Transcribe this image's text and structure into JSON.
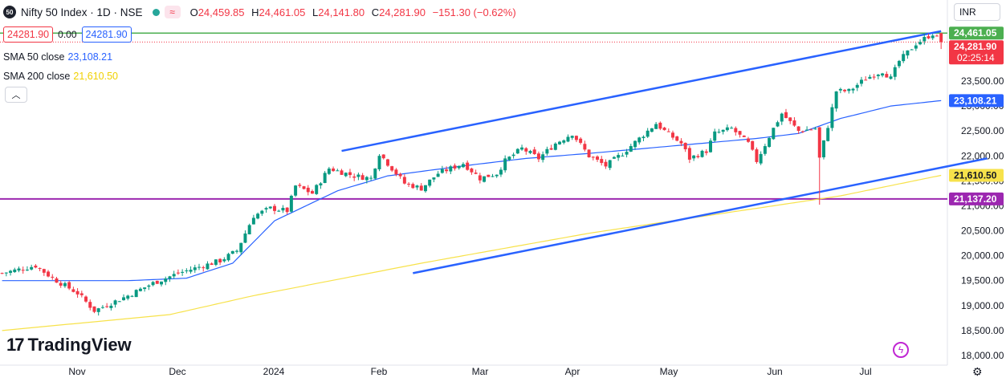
{
  "header": {
    "symbol_logo": "50",
    "title": "Nifty 50 Index · 1D · NSE",
    "ohlc": [
      {
        "label": "O",
        "value": "24,459.85"
      },
      {
        "label": "H",
        "value": "24,461.05"
      },
      {
        "label": "L",
        "value": "24,141.80"
      },
      {
        "label": "C",
        "value": "24,281.90"
      }
    ],
    "change": "−151.30 (−0.62%)",
    "bid": "24281.90",
    "spread": "0.00",
    "ask": "24281.90",
    "currency": "INR"
  },
  "indicators": [
    {
      "label": "SMA 50 close",
      "value": "23,108.21",
      "color": "#2962ff"
    },
    {
      "label": "SMA 200 close",
      "value": "21,610.50",
      "color": "#f0d000"
    }
  ],
  "branding": {
    "logo_text": "TradingView",
    "logo_mark": "17"
  },
  "chart_data": {
    "type": "candlestick",
    "x_labels": [
      "Nov",
      "Dec",
      "2024",
      "Feb",
      "Mar",
      "Apr",
      "May",
      "Jun",
      "Jul"
    ],
    "ylim": [
      17950,
      24750
    ],
    "y_ticks": [
      18000,
      18500,
      19000,
      19500,
      20000,
      20500,
      21000,
      21500,
      22000,
      22500,
      23000,
      23500
    ],
    "y_tick_labels": [
      "18,000.00",
      "18,500.00",
      "19,000.00",
      "19,500.00",
      "20,000.00",
      "20,500.00",
      "21,000.00",
      "21,500.00",
      "22,000.00",
      "22,500.00",
      "23,000.00",
      "23,500.00"
    ],
    "colors": {
      "up": "#089981",
      "down": "#f23645",
      "sma50": "#2962ff",
      "sma200": "#f7e24b",
      "trend": "#2962ff",
      "high_line": "#4caf50",
      "support_line": "#9c27b0"
    },
    "high_line": 24461.05,
    "support_line": 21137.2,
    "price_labels": [
      {
        "value": 24461.05,
        "text": "24,461.05",
        "color": "#4caf50",
        "sub": ""
      },
      {
        "value": 24281.9,
        "text": "24,281.90",
        "color": "#f23645",
        "sub": "02:25:14"
      },
      {
        "value": 23108.21,
        "text": "23,108.21",
        "color": "#2962ff",
        "sub": ""
      },
      {
        "value": 21610.5,
        "text": "21,610.50",
        "color": "#f7e24b",
        "sub": ""
      },
      {
        "value": 21137.2,
        "text": "21,137.20",
        "color": "#9c27b0",
        "sub": ""
      }
    ],
    "start_close": 19650,
    "close_path": [
      [
        0,
        19650
      ],
      [
        8,
        19800
      ],
      [
        12,
        19550
      ],
      [
        18,
        19250
      ],
      [
        22,
        18900
      ],
      [
        30,
        19200
      ],
      [
        36,
        19450
      ],
      [
        42,
        19650
      ],
      [
        48,
        19800
      ],
      [
        52,
        19900
      ],
      [
        56,
        20100
      ],
      [
        60,
        20800
      ],
      [
        64,
        20950
      ],
      [
        68,
        20900
      ],
      [
        70,
        21400
      ],
      [
        74,
        21250
      ],
      [
        78,
        21750
      ],
      [
        84,
        21600
      ],
      [
        88,
        21550
      ],
      [
        90,
        22050
      ],
      [
        96,
        21450
      ],
      [
        100,
        21350
      ],
      [
        104,
        21650
      ],
      [
        110,
        21850
      ],
      [
        114,
        21550
      ],
      [
        118,
        21650
      ],
      [
        120,
        21900
      ],
      [
        124,
        22150
      ],
      [
        128,
        21950
      ],
      [
        132,
        22250
      ],
      [
        136,
        22450
      ],
      [
        140,
        22000
      ],
      [
        144,
        21800
      ],
      [
        148,
        22050
      ],
      [
        152,
        22350
      ],
      [
        156,
        22650
      ],
      [
        158,
        22500
      ],
      [
        162,
        22250
      ],
      [
        164,
        21950
      ],
      [
        168,
        22100
      ],
      [
        170,
        22450
      ],
      [
        174,
        22550
      ],
      [
        178,
        22250
      ],
      [
        180,
        21900
      ],
      [
        184,
        22550
      ],
      [
        186,
        22850
      ],
      [
        190,
        22500
      ],
      [
        194,
        22550
      ],
      [
        195,
        21950
      ],
      [
        197,
        22600
      ],
      [
        199,
        23300
      ],
      [
        202,
        23300
      ],
      [
        206,
        23550
      ],
      [
        210,
        23700
      ],
      [
        212,
        23550
      ],
      [
        214,
        23900
      ],
      [
        218,
        24250
      ],
      [
        222,
        24450
      ],
      [
        224,
        24281.9
      ]
    ],
    "sma50_path": [
      [
        0,
        19500
      ],
      [
        30,
        19500
      ],
      [
        44,
        19550
      ],
      [
        55,
        19850
      ],
      [
        65,
        20700
      ],
      [
        80,
        21300
      ],
      [
        92,
        21600
      ],
      [
        110,
        21800
      ],
      [
        125,
        21950
      ],
      [
        140,
        22050
      ],
      [
        160,
        22200
      ],
      [
        180,
        22350
      ],
      [
        190,
        22450
      ],
      [
        200,
        22750
      ],
      [
        212,
        23000
      ],
      [
        224,
        23108.21
      ]
    ],
    "sma200_path": [
      [
        0,
        18500
      ],
      [
        40,
        18820
      ],
      [
        60,
        19200
      ],
      [
        100,
        19850
      ],
      [
        140,
        20450
      ],
      [
        180,
        20950
      ],
      [
        200,
        21200
      ],
      [
        224,
        21610.5
      ]
    ],
    "trend_upper": [
      [
        81,
        22100
      ],
      [
        224,
        24500
      ]
    ],
    "trend_lower": [
      [
        98,
        19650
      ],
      [
        235,
        21950
      ]
    ]
  }
}
